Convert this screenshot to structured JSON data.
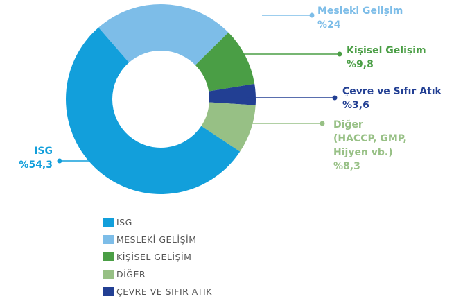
{
  "chart_data": {
    "type": "donut",
    "categories": [
      "Mesleki Gelişim",
      "Kişisel Gelişim",
      "Çevre ve Sıfır Atık",
      "Diğer\n(HACCP, GMP,\nHijyen vb.)",
      "ISG"
    ],
    "values": [
      24,
      9.8,
      3.6,
      8.3,
      54.3
    ],
    "value_labels": [
      "%24",
      "%9,8",
      "%3,6",
      "%8,3",
      "%54,3"
    ],
    "colors": [
      "#7dbde8",
      "#4a9e45",
      "#223f93",
      "#97c085",
      "#129fdb"
    ],
    "legend": [
      {
        "name": "ISG",
        "color": "#129fdb"
      },
      {
        "name": "MESLEKİ GELİŞİM",
        "color": "#7dbde8"
      },
      {
        "name": "KİŞİSEL GELİŞİM",
        "color": "#4a9e45"
      },
      {
        "name": "DİĞER",
        "color": "#97c085"
      },
      {
        "name": "ÇEVRE VE SIFIR ATIK",
        "color": "#223f93"
      }
    ]
  }
}
